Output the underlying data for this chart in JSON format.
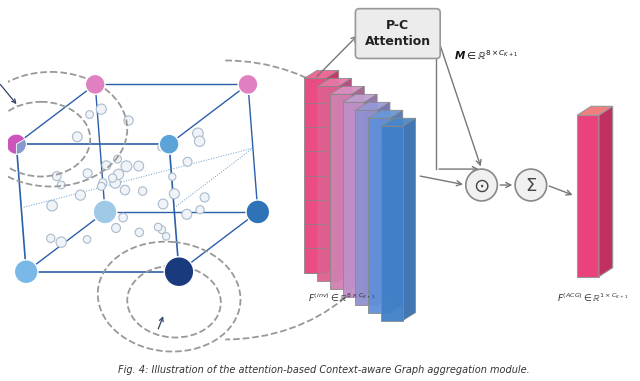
{
  "bg_color": "#ffffff",
  "caption": "Fig. 4: Illustration of the attention-based Context-aware Graph aggregation module.",
  "blue_edge": "#2b5fa8",
  "blue_edge_light": "#6699cc",
  "dashed_color": "#999999",
  "arrow_color": "#777777",
  "box_fill": "#e8e8e8",
  "box_edge": "#888888",
  "node_colors": [
    "#5ba3d9",
    "#e9427d",
    "#e9427d",
    "#5ba3d9",
    "#a8c8e8",
    "#1a3a7e",
    "#d070c0",
    "#cc88dd"
  ],
  "node_sizes": [
    10,
    12,
    10,
    12,
    10,
    15,
    10,
    10
  ],
  "pie_purple": "#c080e0",
  "pie_blue": "#8899cc",
  "point_fc": "#f0f4f8",
  "point_ec": "#aabbcc",
  "slice_front": [
    "#e9427d",
    "#e06090",
    "#d080b0",
    "#c090c8",
    "#9090d0",
    "#6090d8",
    "#4080c8"
  ],
  "slice_top": [
    "#f06090",
    "#e878a8",
    "#d890c0",
    "#c0a0d0",
    "#9898d8",
    "#6898d8",
    "#4888c8"
  ],
  "slice_side": [
    "#c03060",
    "#b04878",
    "#a06090",
    "#9070a8",
    "#7070b0",
    "#5078b8",
    "#3870b0"
  ],
  "pink_front": "#e9427d",
  "pink_top": "#f08080",
  "pink_side": "#c03060",
  "circle_fill": "#f0f0f0",
  "circle_edge": "#888888"
}
